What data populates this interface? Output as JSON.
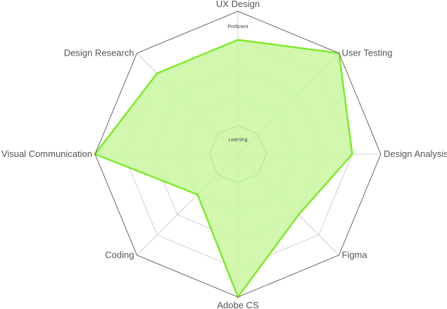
{
  "chart_data": {
    "type": "radar",
    "axes": [
      "UX Design",
      "User Testing",
      "Design Analysis",
      "Figma",
      "Adobe CS",
      "Coding",
      "Visual Communication",
      "Design Research"
    ],
    "scale": {
      "min": 0,
      "max": 5
    },
    "level_labels": {
      "inner": "Learning",
      "outer": "Proficient"
    },
    "series": [
      {
        "values": [
          4,
          5,
          4,
          3,
          5,
          2,
          5,
          4
        ]
      }
    ],
    "colors": {
      "fill": "#c9f7a0",
      "stroke": "#7eeb2a",
      "frame": "#666666",
      "grid": "#d0d0d0"
    }
  }
}
